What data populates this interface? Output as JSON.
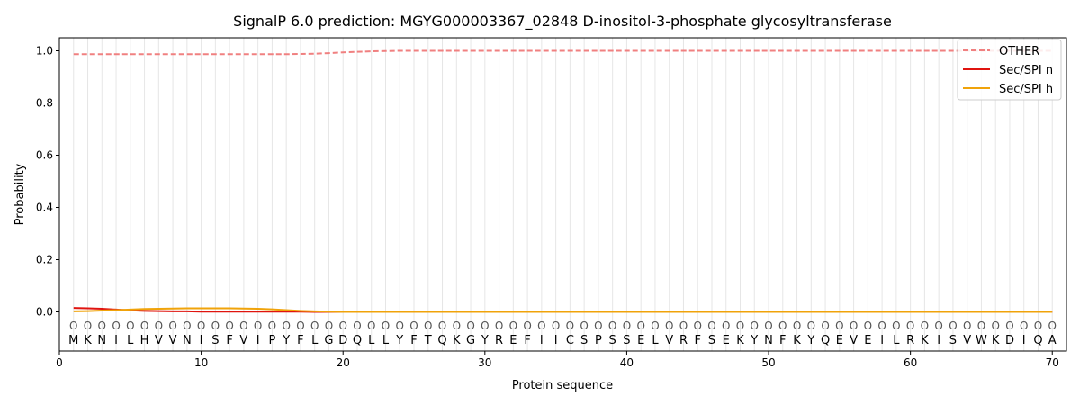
{
  "chart_data": {
    "type": "line",
    "title": "SignalP 6.0 prediction: MGYG000003367_02848 D-inositol-3-phosphate glycosyltransferase",
    "xlabel": "Protein sequence",
    "ylabel": "Probability",
    "xlim": [
      0,
      71
    ],
    "ylim": [
      -0.15,
      1.05
    ],
    "x_ticks": [
      "0",
      "10",
      "20",
      "30",
      "40",
      "50",
      "60",
      "70"
    ],
    "y_ticks": [
      "0.0",
      "0.2",
      "0.4",
      "0.6",
      "0.8",
      "1.0"
    ],
    "legend_position": "top-right",
    "grid": "vertical lines at each residue",
    "sequence": [
      "M",
      "K",
      "N",
      "I",
      "L",
      "H",
      "V",
      "V",
      "N",
      "I",
      "S",
      "F",
      "V",
      "I",
      "P",
      "Y",
      "F",
      "L",
      "G",
      "D",
      "Q",
      "L",
      "L",
      "Y",
      "F",
      "T",
      "Q",
      "K",
      "G",
      "Y",
      "R",
      "E",
      "F",
      "I",
      "I",
      "C",
      "S",
      "P",
      "S",
      "S",
      "E",
      "L",
      "V",
      "R",
      "F",
      "S",
      "E",
      "K",
      "Y",
      "N",
      "F",
      "K",
      "Y",
      "Q",
      "E",
      "V",
      "E",
      "I",
      "L",
      "R",
      "K",
      "I",
      "S",
      "V",
      "W",
      "K",
      "D",
      "I",
      "Q",
      "A"
    ],
    "predicted_labels": [
      "O",
      "O",
      "O",
      "O",
      "O",
      "O",
      "O",
      "O",
      "O",
      "O",
      "O",
      "O",
      "O",
      "O",
      "O",
      "O",
      "O",
      "O",
      "O",
      "O",
      "O",
      "O",
      "O",
      "O",
      "O",
      "O",
      "O",
      "O",
      "O",
      "O",
      "O",
      "O",
      "O",
      "O",
      "O",
      "O",
      "O",
      "O",
      "O",
      "O",
      "O",
      "O",
      "O",
      "O",
      "O",
      "O",
      "O",
      "O",
      "O",
      "O",
      "O",
      "O",
      "O",
      "O",
      "O",
      "O",
      "O",
      "O",
      "O",
      "O",
      "O",
      "O",
      "O",
      "O",
      "O",
      "O",
      "O",
      "O",
      "O",
      "O"
    ],
    "series": [
      {
        "name": "OTHER",
        "color": "#f08080",
        "style": "dashed",
        "values": [
          0.987,
          0.987,
          0.987,
          0.987,
          0.987,
          0.987,
          0.987,
          0.987,
          0.987,
          0.987,
          0.987,
          0.987,
          0.987,
          0.987,
          0.987,
          0.987,
          0.988,
          0.989,
          0.991,
          0.994,
          0.996,
          0.998,
          0.999,
          1.0,
          1.0,
          1.0,
          1.0,
          1.0,
          1.0,
          1.0,
          1.0,
          1.0,
          1.0,
          1.0,
          1.0,
          1.0,
          1.0,
          1.0,
          1.0,
          1.0,
          1.0,
          1.0,
          1.0,
          1.0,
          1.0,
          1.0,
          1.0,
          1.0,
          1.0,
          1.0,
          1.0,
          1.0,
          1.0,
          1.0,
          1.0,
          1.0,
          1.0,
          1.0,
          1.0,
          1.0,
          1.0,
          1.0,
          1.0,
          1.0,
          1.0,
          1.0,
          1.0,
          1.0,
          1.0,
          1.0
        ]
      },
      {
        "name": "Sec/SPI n",
        "color": "#e0140f",
        "style": "solid",
        "values": [
          0.015,
          0.014,
          0.012,
          0.009,
          0.006,
          0.004,
          0.003,
          0.002,
          0.002,
          0.001,
          0.001,
          0.001,
          0.001,
          0.001,
          0.001,
          0.001,
          0.001,
          0.0,
          0.0,
          0.0,
          0.0,
          0.0,
          0.0,
          0.0,
          0.0,
          0.0,
          0.0,
          0.0,
          0.0,
          0.0,
          0.0,
          0.0,
          0.0,
          0.0,
          0.0,
          0.0,
          0.0,
          0.0,
          0.0,
          0.0,
          0.0,
          0.0,
          0.0,
          0.0,
          0.0,
          0.0,
          0.0,
          0.0,
          0.0,
          0.0,
          0.0,
          0.0,
          0.0,
          0.0,
          0.0,
          0.0,
          0.0,
          0.0,
          0.0,
          0.0,
          0.0,
          0.0,
          0.0,
          0.0,
          0.0,
          0.0,
          0.0,
          0.0,
          0.0,
          0.0
        ]
      },
      {
        "name": "Sec/SPI h",
        "color": "#f0a30a",
        "style": "solid",
        "values": [
          0.002,
          0.003,
          0.005,
          0.007,
          0.009,
          0.011,
          0.012,
          0.013,
          0.014,
          0.014,
          0.014,
          0.014,
          0.013,
          0.012,
          0.01,
          0.007,
          0.004,
          0.002,
          0.001,
          0.0,
          0.0,
          0.0,
          0.0,
          0.0,
          0.0,
          0.0,
          0.0,
          0.0,
          0.0,
          0.0,
          0.0,
          0.0,
          0.0,
          0.0,
          0.0,
          0.0,
          0.0,
          0.0,
          0.0,
          0.0,
          0.0,
          0.0,
          0.0,
          0.0,
          0.0,
          0.0,
          0.0,
          0.0,
          0.0,
          0.0,
          0.0,
          0.0,
          0.0,
          0.0,
          0.0,
          0.0,
          0.0,
          0.0,
          0.0,
          0.0,
          0.0,
          0.0,
          0.0,
          0.0,
          0.0,
          0.0,
          0.0,
          0.0,
          0.0,
          0.0
        ]
      }
    ]
  }
}
